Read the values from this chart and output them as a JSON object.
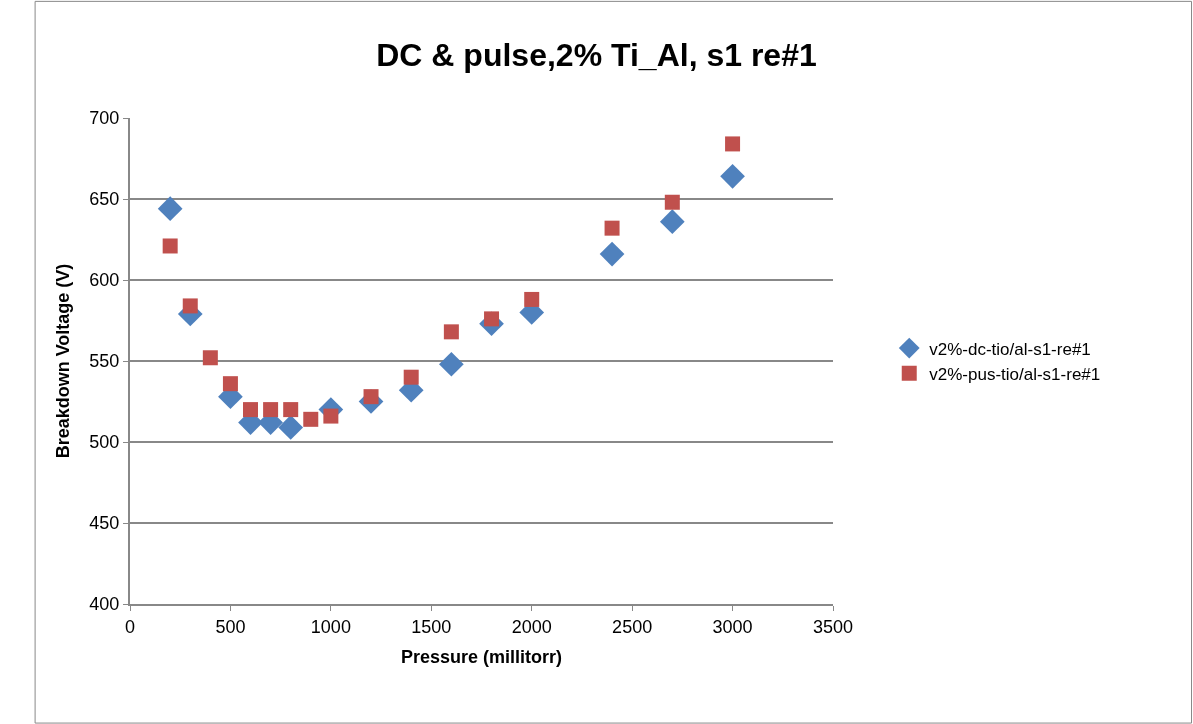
{
  "chart_data": {
    "type": "scatter",
    "title": "DC & pulse,2% Ti_Al, s1 re#1",
    "xlabel": "Pressure (millitorr)",
    "ylabel": "Breakdown Voltage (V)",
    "x": [
      200,
      300,
      400,
      500,
      600,
      700,
      800,
      900,
      1000,
      1200,
      1400,
      1600,
      1800,
      2000,
      2400,
      2700,
      3000
    ],
    "series": [
      {
        "name": "v2%-dc-tio/al-s1-re#1",
        "color": "#4f81bd",
        "marker": "diamond",
        "values": [
          644,
          579,
          null,
          528,
          512,
          512,
          509,
          null,
          520,
          525,
          532,
          548,
          573,
          580,
          616,
          636,
          664
        ]
      },
      {
        "name": "v2%-pus-tio/al-s1-re#1",
        "color": "#c0504d",
        "marker": "square",
        "values": [
          621,
          584,
          552,
          536,
          520,
          520,
          520,
          514,
          516,
          528,
          540,
          568,
          576,
          588,
          632,
          648,
          684
        ]
      }
    ],
    "xlim": [
      0,
      3500
    ],
    "xticks": [
      0,
      500,
      1000,
      1500,
      2000,
      2500,
      3000,
      3500
    ],
    "ylim": [
      400,
      700
    ],
    "yticks": [
      400,
      450,
      500,
      550,
      600,
      650,
      700
    ],
    "grid": "y",
    "legend": "right"
  }
}
